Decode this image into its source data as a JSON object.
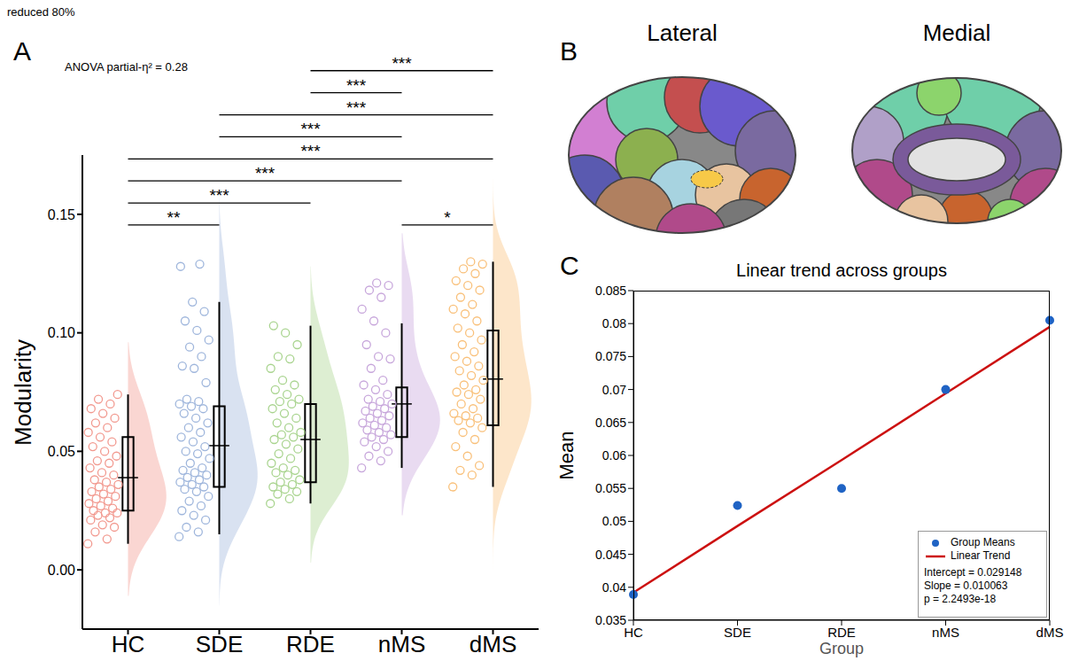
{
  "header": "reduced 80%",
  "diagram": {
    "panel": "B",
    "views": [
      "Lateral",
      "Medial"
    ]
  },
  "chart_data": [
    {
      "panel": "A",
      "type": "raincloud",
      "ylabel": "Modularity",
      "ylim": [
        -0.025,
        0.175
      ],
      "yticks": [
        {
          "value": 0,
          "label": "0.00"
        },
        {
          "value": 0.05,
          "label": "0.05"
        },
        {
          "value": 0.1,
          "label": "0.10"
        },
        {
          "value": 0.15,
          "label": "0.15"
        }
      ],
      "annotations": [
        "ANOVA partial-η² = 0.28"
      ],
      "groups": [
        {
          "name": "HC",
          "color": "#f2998f",
          "whisker_low": 0.011,
          "q1": 0.025,
          "q3": 0.056,
          "whisker_high": 0.074,
          "mean": 0.0389,
          "violin_range": [
            -0.011,
            0.096
          ],
          "points": [
            0.011,
            0.013,
            0.016,
            0.018,
            0.019,
            0.021,
            0.022,
            0.023,
            0.024,
            0.024,
            0.025,
            0.026,
            0.027,
            0.028,
            0.029,
            0.03,
            0.031,
            0.032,
            0.033,
            0.034,
            0.035,
            0.036,
            0.037,
            0.038,
            0.04,
            0.041,
            0.043,
            0.045,
            0.046,
            0.048,
            0.05,
            0.052,
            0.054,
            0.056,
            0.058,
            0.06,
            0.062,
            0.064,
            0.066,
            0.068,
            0.07,
            0.072,
            0.074
          ]
        },
        {
          "name": "SDE",
          "color": "#9fb6dc",
          "whisker_low": 0.015,
          "q1": 0.035,
          "q3": 0.069,
          "whisker_high": 0.113,
          "mean": 0.0524,
          "violin_range": [
            -0.015,
            0.158
          ],
          "points": [
            0.014,
            0.016,
            0.018,
            0.021,
            0.023,
            0.025,
            0.027,
            0.029,
            0.031,
            0.033,
            0.034,
            0.035,
            0.036,
            0.037,
            0.038,
            0.039,
            0.04,
            0.041,
            0.042,
            0.043,
            0.045,
            0.047,
            0.049,
            0.05,
            0.052,
            0.054,
            0.056,
            0.058,
            0.06,
            0.062,
            0.064,
            0.066,
            0.068,
            0.069,
            0.07,
            0.071,
            0.072,
            0.079,
            0.085,
            0.086,
            0.09,
            0.094,
            0.097,
            0.101,
            0.105,
            0.109,
            0.113,
            0.128,
            0.129
          ]
        },
        {
          "name": "RDE",
          "color": "#a9d48f",
          "whisker_low": 0.028,
          "q1": 0.037,
          "q3": 0.07,
          "whisker_high": 0.103,
          "mean": 0.055,
          "violin_range": [
            0.003,
            0.128
          ],
          "points": [
            0.028,
            0.03,
            0.032,
            0.033,
            0.034,
            0.035,
            0.036,
            0.037,
            0.038,
            0.04,
            0.041,
            0.042,
            0.043,
            0.045,
            0.047,
            0.049,
            0.051,
            0.053,
            0.055,
            0.056,
            0.057,
            0.058,
            0.06,
            0.062,
            0.064,
            0.066,
            0.068,
            0.07,
            0.071,
            0.072,
            0.074,
            0.076,
            0.078,
            0.08,
            0.085,
            0.089,
            0.09,
            0.095,
            0.1,
            0.103
          ]
        },
        {
          "name": "nMS",
          "color": "#c7a6db",
          "whisker_low": 0.043,
          "q1": 0.056,
          "q3": 0.077,
          "whisker_high": 0.104,
          "mean": 0.07,
          "violin_range": [
            0.023,
            0.142
          ],
          "points": [
            0.043,
            0.046,
            0.048,
            0.05,
            0.052,
            0.054,
            0.055,
            0.056,
            0.057,
            0.058,
            0.059,
            0.06,
            0.061,
            0.062,
            0.063,
            0.064,
            0.065,
            0.066,
            0.067,
            0.068,
            0.069,
            0.07,
            0.071,
            0.072,
            0.074,
            0.076,
            0.078,
            0.08,
            0.085,
            0.089,
            0.09,
            0.095,
            0.1,
            0.105,
            0.11,
            0.115,
            0.118,
            0.12,
            0.121
          ]
        },
        {
          "name": "dMS",
          "color": "#f9c07a",
          "whisker_low": 0.035,
          "q1": 0.061,
          "q3": 0.101,
          "whisker_high": 0.13,
          "mean": 0.0805,
          "violin_range": [
            0.0,
            0.165
          ],
          "points": [
            0.035,
            0.04,
            0.042,
            0.044,
            0.048,
            0.052,
            0.055,
            0.058,
            0.06,
            0.062,
            0.063,
            0.064,
            0.065,
            0.066,
            0.068,
            0.07,
            0.072,
            0.074,
            0.075,
            0.076,
            0.078,
            0.08,
            0.082,
            0.084,
            0.086,
            0.088,
            0.09,
            0.092,
            0.095,
            0.097,
            0.1,
            0.102,
            0.105,
            0.108,
            0.11,
            0.112,
            0.115,
            0.118,
            0.12,
            0.122,
            0.125,
            0.127,
            0.129,
            0.13
          ]
        }
      ],
      "significance": [
        {
          "groups": [
            "RDE",
            "dMS"
          ],
          "label": "***"
        },
        {
          "groups": [
            "RDE",
            "nMS"
          ],
          "label": "***"
        },
        {
          "groups": [
            "SDE",
            "dMS"
          ],
          "label": "***"
        },
        {
          "groups": [
            "SDE",
            "nMS"
          ],
          "label": "***"
        },
        {
          "groups": [
            "HC",
            "dMS"
          ],
          "label": "***"
        },
        {
          "groups": [
            "HC",
            "nMS"
          ],
          "label": "***"
        },
        {
          "groups": [
            "HC",
            "RDE"
          ],
          "label": "***"
        },
        {
          "groups": [
            "HC",
            "SDE"
          ],
          "label": "**"
        },
        {
          "groups": [
            "nMS",
            "dMS"
          ],
          "label": "*"
        }
      ]
    },
    {
      "panel": "C",
      "type": "line",
      "title": "Linear trend across groups",
      "xlabel": "Group",
      "ylabel": "Mean",
      "categories": [
        "HC",
        "SDE",
        "RDE",
        "nMS",
        "dMS"
      ],
      "series": [
        {
          "name": "Group Means",
          "type": "scatter",
          "marker": "circle",
          "color": "#1f63c4",
          "values": [
            0.0389,
            0.0524,
            0.055,
            0.07,
            0.0805
          ]
        },
        {
          "name": "Linear Trend",
          "type": "line",
          "color": "#cc1111",
          "values": [
            0.0392,
            0.0493,
            0.0593,
            0.0694,
            0.0795
          ]
        }
      ],
      "ylim": [
        0.035,
        0.085
      ],
      "yticks": [
        0.035,
        0.04,
        0.045,
        0.05,
        0.055,
        0.06,
        0.065,
        0.07,
        0.075,
        0.08,
        0.085
      ],
      "legend": "lower right",
      "annotations": [
        "Intercept = 0.029148",
        "Slope = 0.010063",
        "p = 2.2493e-18"
      ]
    }
  ]
}
